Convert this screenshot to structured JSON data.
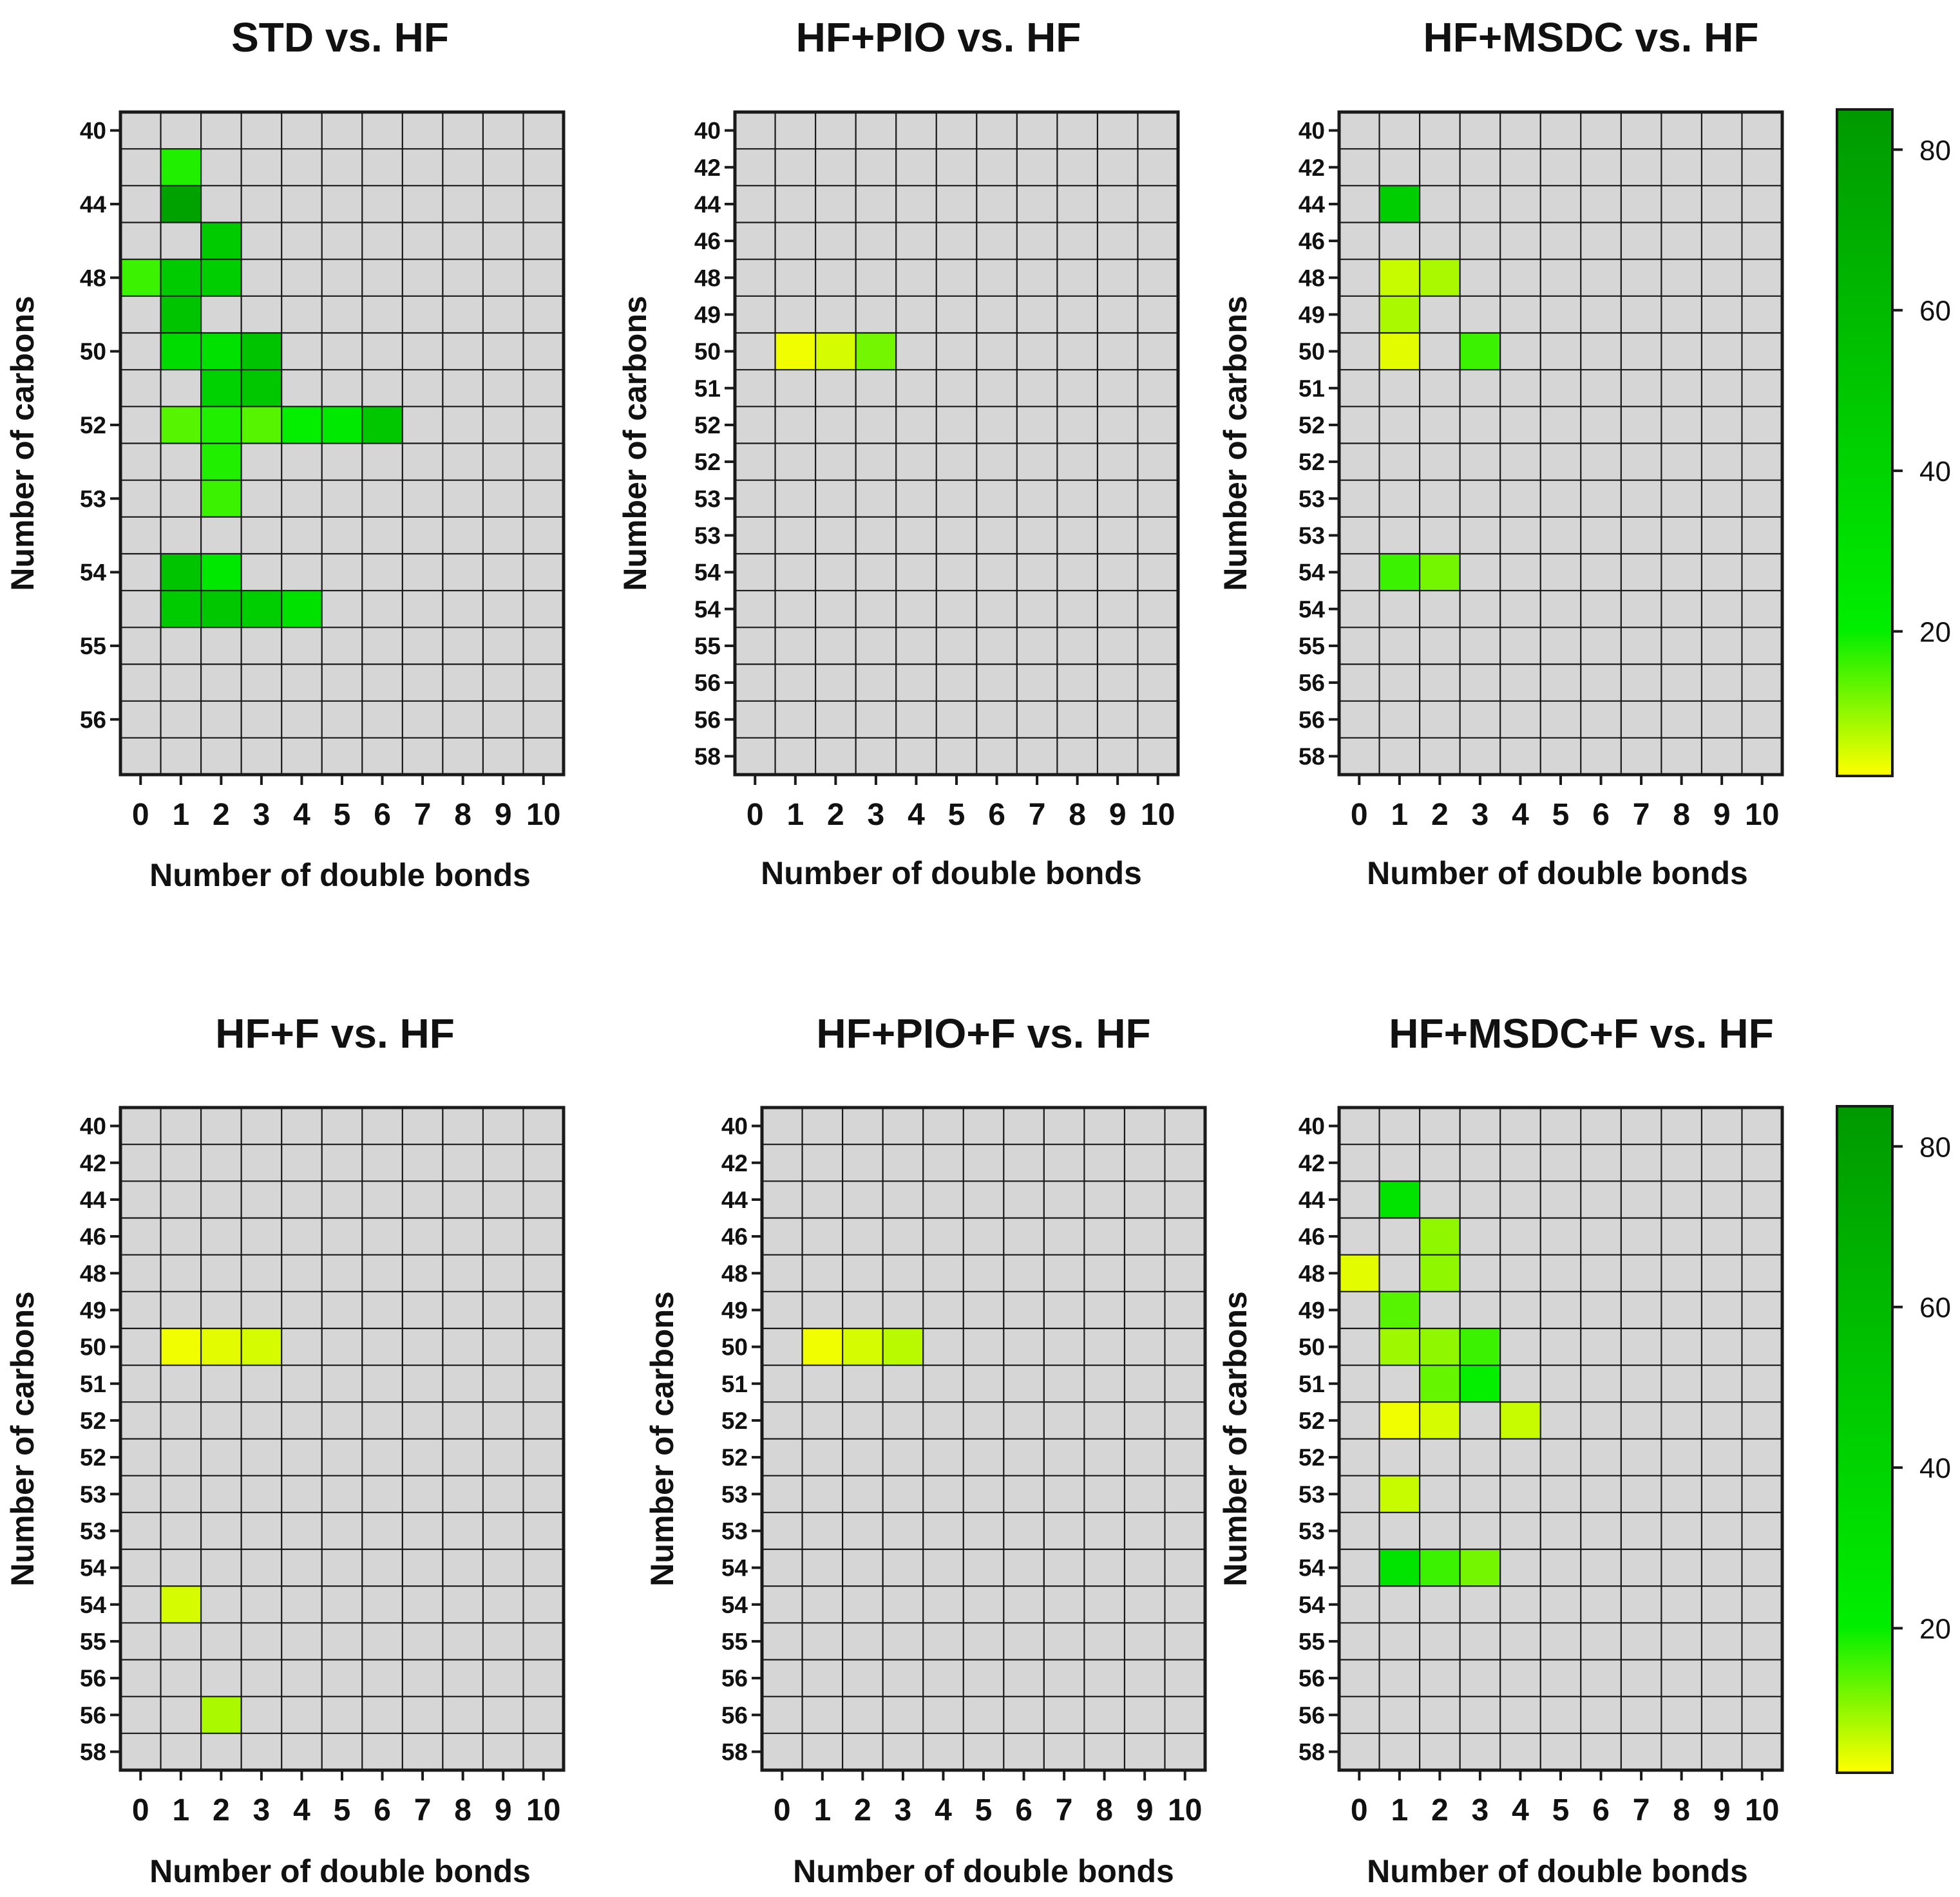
{
  "colors": {
    "empty_cell": "#d6d6d6",
    "grid_line": "#1a1a1a",
    "scale_low": "#ffff00",
    "scale_mid": "#00ee00",
    "scale_high": "#009900"
  },
  "colorbar": {
    "min": 2,
    "max": 85,
    "ticks": [
      "20",
      "40",
      "60",
      "80"
    ]
  },
  "chart_data": [
    {
      "type": "heatmap",
      "title": "STD vs. HF",
      "xlabel": "Number of double bonds",
      "ylabel": "Number of carbons",
      "x_ticks": [
        "0",
        "1",
        "2",
        "3",
        "4",
        "5",
        "6",
        "7",
        "8",
        "9",
        "10"
      ],
      "rows": 18,
      "y_ticks": [
        {
          "label": "40",
          "row": 0
        },
        {
          "label": "44",
          "row": 2
        },
        {
          "label": "48",
          "row": 4
        },
        {
          "label": "50",
          "row": 6
        },
        {
          "label": "52",
          "row": 8
        },
        {
          "label": "53",
          "row": 10
        },
        {
          "label": "54",
          "row": 12
        },
        {
          "label": "55",
          "row": 14
        },
        {
          "label": "56",
          "row": 16
        }
      ],
      "cells": [
        {
          "row": 1,
          "x": 1,
          "value": 18
        },
        {
          "row": 2,
          "x": 1,
          "value": 78
        },
        {
          "row": 3,
          "x": 2,
          "value": 48
        },
        {
          "row": 4,
          "x": 0,
          "value": 16
        },
        {
          "row": 4,
          "x": 1,
          "value": 48
        },
        {
          "row": 4,
          "x": 2,
          "value": 45
        },
        {
          "row": 5,
          "x": 1,
          "value": 52
        },
        {
          "row": 6,
          "x": 1,
          "value": 35
        },
        {
          "row": 6,
          "x": 2,
          "value": 30
        },
        {
          "row": 6,
          "x": 3,
          "value": 52
        },
        {
          "row": 7,
          "x": 2,
          "value": 42
        },
        {
          "row": 7,
          "x": 3,
          "value": 50
        },
        {
          "row": 8,
          "x": 1,
          "value": 14
        },
        {
          "row": 8,
          "x": 2,
          "value": 18
        },
        {
          "row": 8,
          "x": 3,
          "value": 14
        },
        {
          "row": 8,
          "x": 4,
          "value": 20
        },
        {
          "row": 8,
          "x": 5,
          "value": 24
        },
        {
          "row": 8,
          "x": 6,
          "value": 50
        },
        {
          "row": 9,
          "x": 2,
          "value": 18
        },
        {
          "row": 10,
          "x": 2,
          "value": 16
        },
        {
          "row": 12,
          "x": 1,
          "value": 52
        },
        {
          "row": 12,
          "x": 2,
          "value": 25
        },
        {
          "row": 13,
          "x": 1,
          "value": 48
        },
        {
          "row": 13,
          "x": 2,
          "value": 50
        },
        {
          "row": 13,
          "x": 3,
          "value": 45
        },
        {
          "row": 13,
          "x": 4,
          "value": 30
        }
      ]
    },
    {
      "type": "heatmap",
      "title": "HF+PIO vs. HF",
      "xlabel": "Number of double bonds",
      "ylabel": "Number of carbons",
      "x_ticks": [
        "0",
        "1",
        "2",
        "3",
        "4",
        "5",
        "6",
        "7",
        "8",
        "9",
        "10"
      ],
      "rows": 18,
      "y_ticks": [
        {
          "label": "40",
          "row": 0
        },
        {
          "label": "42",
          "row": 1
        },
        {
          "label": "44",
          "row": 2
        },
        {
          "label": "46",
          "row": 3
        },
        {
          "label": "48",
          "row": 4
        },
        {
          "label": "49",
          "row": 5
        },
        {
          "label": "50",
          "row": 6
        },
        {
          "label": "51",
          "row": 7
        },
        {
          "label": "52",
          "row": 8
        },
        {
          "label": "52",
          "row": 9
        },
        {
          "label": "53",
          "row": 10
        },
        {
          "label": "53",
          "row": 11
        },
        {
          "label": "54",
          "row": 12
        },
        {
          "label": "54",
          "row": 13
        },
        {
          "label": "55",
          "row": 14
        },
        {
          "label": "56",
          "row": 15
        },
        {
          "label": "56",
          "row": 16
        },
        {
          "label": "58",
          "row": 17
        }
      ],
      "cells": [
        {
          "row": 6,
          "x": 1,
          "value": 3
        },
        {
          "row": 6,
          "x": 2,
          "value": 5
        },
        {
          "row": 6,
          "x": 3,
          "value": 12
        }
      ]
    },
    {
      "type": "heatmap",
      "title": "HF+MSDC vs. HF",
      "xlabel": "Number of double bonds",
      "ylabel": "Number of carbons",
      "x_ticks": [
        "0",
        "1",
        "2",
        "3",
        "4",
        "5",
        "6",
        "7",
        "8",
        "9",
        "10"
      ],
      "rows": 18,
      "y_ticks": [
        {
          "label": "40",
          "row": 0
        },
        {
          "label": "42",
          "row": 1
        },
        {
          "label": "44",
          "row": 2
        },
        {
          "label": "46",
          "row": 3
        },
        {
          "label": "48",
          "row": 4
        },
        {
          "label": "49",
          "row": 5
        },
        {
          "label": "50",
          "row": 6
        },
        {
          "label": "51",
          "row": 7
        },
        {
          "label": "52",
          "row": 8
        },
        {
          "label": "52",
          "row": 9
        },
        {
          "label": "53",
          "row": 10
        },
        {
          "label": "53",
          "row": 11
        },
        {
          "label": "54",
          "row": 12
        },
        {
          "label": "54",
          "row": 13
        },
        {
          "label": "55",
          "row": 14
        },
        {
          "label": "56",
          "row": 15
        },
        {
          "label": "56",
          "row": 16
        },
        {
          "label": "58",
          "row": 17
        }
      ],
      "cells": [
        {
          "row": 2,
          "x": 1,
          "value": 45
        },
        {
          "row": 4,
          "x": 1,
          "value": 6
        },
        {
          "row": 4,
          "x": 2,
          "value": 8
        },
        {
          "row": 5,
          "x": 1,
          "value": 8
        },
        {
          "row": 6,
          "x": 1,
          "value": 4
        },
        {
          "row": 6,
          "x": 3,
          "value": 16
        },
        {
          "row": 12,
          "x": 1,
          "value": 16
        },
        {
          "row": 12,
          "x": 2,
          "value": 12
        }
      ]
    },
    {
      "type": "heatmap",
      "title": "HF+F vs. HF",
      "xlabel": "Number of double bonds",
      "ylabel": "Number of carbons",
      "x_ticks": [
        "0",
        "1",
        "2",
        "3",
        "4",
        "5",
        "6",
        "7",
        "8",
        "9",
        "10"
      ],
      "rows": 18,
      "y_ticks": [
        {
          "label": "40",
          "row": 0
        },
        {
          "label": "42",
          "row": 1
        },
        {
          "label": "44",
          "row": 2
        },
        {
          "label": "46",
          "row": 3
        },
        {
          "label": "48",
          "row": 4
        },
        {
          "label": "49",
          "row": 5
        },
        {
          "label": "50",
          "row": 6
        },
        {
          "label": "51",
          "row": 7
        },
        {
          "label": "52",
          "row": 8
        },
        {
          "label": "52",
          "row": 9
        },
        {
          "label": "53",
          "row": 10
        },
        {
          "label": "53",
          "row": 11
        },
        {
          "label": "54",
          "row": 12
        },
        {
          "label": "54",
          "row": 13
        },
        {
          "label": "55",
          "row": 14
        },
        {
          "label": "56",
          "row": 15
        },
        {
          "label": "56",
          "row": 16
        },
        {
          "label": "58",
          "row": 17
        }
      ],
      "cells": [
        {
          "row": 6,
          "x": 1,
          "value": 3
        },
        {
          "row": 6,
          "x": 2,
          "value": 4
        },
        {
          "row": 6,
          "x": 3,
          "value": 5
        },
        {
          "row": 13,
          "x": 1,
          "value": 5
        },
        {
          "row": 16,
          "x": 2,
          "value": 8
        }
      ]
    },
    {
      "type": "heatmap",
      "title": "HF+PIO+F vs. HF",
      "xlabel": "Number of double bonds",
      "ylabel": "Number of carbons",
      "x_ticks": [
        "0",
        "1",
        "2",
        "3",
        "4",
        "5",
        "6",
        "7",
        "8",
        "9",
        "10"
      ],
      "rows": 18,
      "y_ticks": [
        {
          "label": "40",
          "row": 0
        },
        {
          "label": "42",
          "row": 1
        },
        {
          "label": "44",
          "row": 2
        },
        {
          "label": "46",
          "row": 3
        },
        {
          "label": "48",
          "row": 4
        },
        {
          "label": "49",
          "row": 5
        },
        {
          "label": "50",
          "row": 6
        },
        {
          "label": "51",
          "row": 7
        },
        {
          "label": "52",
          "row": 8
        },
        {
          "label": "52",
          "row": 9
        },
        {
          "label": "53",
          "row": 10
        },
        {
          "label": "53",
          "row": 11
        },
        {
          "label": "54",
          "row": 12
        },
        {
          "label": "54",
          "row": 13
        },
        {
          "label": "55",
          "row": 14
        },
        {
          "label": "56",
          "row": 15
        },
        {
          "label": "56",
          "row": 16
        },
        {
          "label": "58",
          "row": 17
        }
      ],
      "cells": [
        {
          "row": 6,
          "x": 1,
          "value": 3
        },
        {
          "row": 6,
          "x": 2,
          "value": 5
        },
        {
          "row": 6,
          "x": 3,
          "value": 7
        }
      ]
    },
    {
      "type": "heatmap",
      "title": "HF+MSDC+F vs. HF",
      "xlabel": "Number of double bonds",
      "ylabel": "Number of carbons",
      "x_ticks": [
        "0",
        "1",
        "2",
        "3",
        "4",
        "5",
        "6",
        "7",
        "8",
        "9",
        "10"
      ],
      "rows": 18,
      "y_ticks": [
        {
          "label": "40",
          "row": 0
        },
        {
          "label": "42",
          "row": 1
        },
        {
          "label": "44",
          "row": 2
        },
        {
          "label": "46",
          "row": 3
        },
        {
          "label": "48",
          "row": 4
        },
        {
          "label": "49",
          "row": 5
        },
        {
          "label": "50",
          "row": 6
        },
        {
          "label": "51",
          "row": 7
        },
        {
          "label": "52",
          "row": 8
        },
        {
          "label": "52",
          "row": 9
        },
        {
          "label": "53",
          "row": 10
        },
        {
          "label": "53",
          "row": 11
        },
        {
          "label": "54",
          "row": 12
        },
        {
          "label": "54",
          "row": 13
        },
        {
          "label": "55",
          "row": 14
        },
        {
          "label": "56",
          "row": 15
        },
        {
          "label": "56",
          "row": 16
        },
        {
          "label": "58",
          "row": 17
        }
      ],
      "cells": [
        {
          "row": 2,
          "x": 1,
          "value": 28
        },
        {
          "row": 3,
          "x": 2,
          "value": 10
        },
        {
          "row": 4,
          "x": 0,
          "value": 4
        },
        {
          "row": 4,
          "x": 2,
          "value": 10
        },
        {
          "row": 5,
          "x": 1,
          "value": 14
        },
        {
          "row": 6,
          "x": 1,
          "value": 9
        },
        {
          "row": 6,
          "x": 2,
          "value": 10
        },
        {
          "row": 6,
          "x": 3,
          "value": 16
        },
        {
          "row": 7,
          "x": 2,
          "value": 13
        },
        {
          "row": 7,
          "x": 3,
          "value": 20
        },
        {
          "row": 8,
          "x": 1,
          "value": 3
        },
        {
          "row": 8,
          "x": 2,
          "value": 5
        },
        {
          "row": 8,
          "x": 4,
          "value": 6
        },
        {
          "row": 10,
          "x": 1,
          "value": 6
        },
        {
          "row": 12,
          "x": 1,
          "value": 28
        },
        {
          "row": 12,
          "x": 2,
          "value": 16
        },
        {
          "row": 12,
          "x": 3,
          "value": 12
        }
      ]
    }
  ]
}
